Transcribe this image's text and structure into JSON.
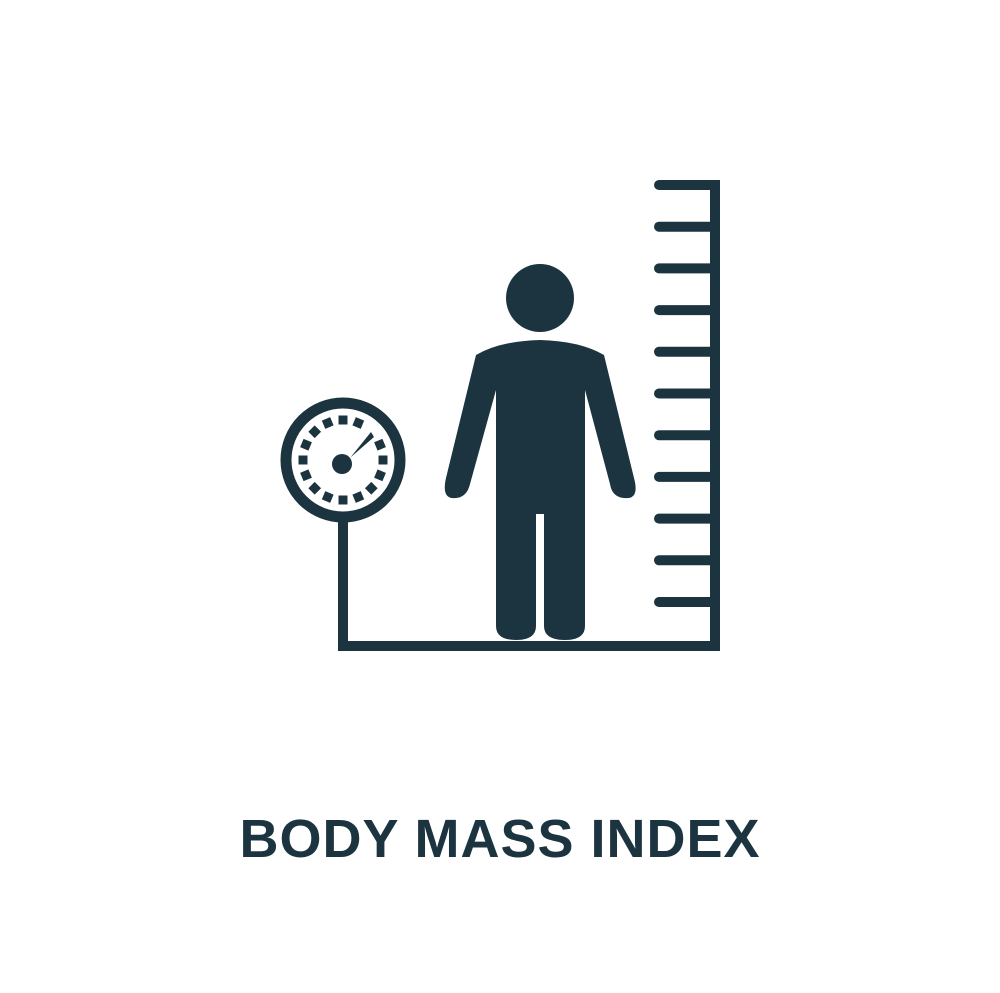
{
  "caption": {
    "text": "BODY MASS INDEX"
  },
  "icon": {
    "name": "body-mass-index-icon",
    "components": [
      "person-icon",
      "scale-gauge-icon",
      "height-ruler-icon"
    ],
    "color": "#1c3440"
  },
  "background_color": "#ffffff"
}
